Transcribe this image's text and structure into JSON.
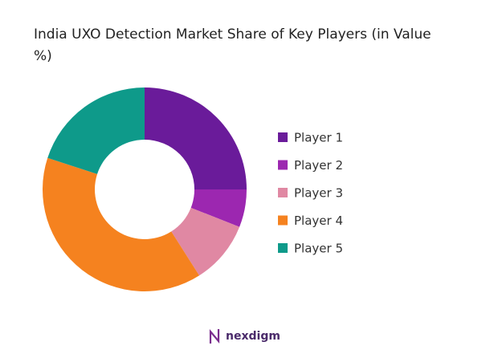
{
  "chart_data": {
    "type": "donut",
    "title": "India UXO Detection Market Share of Key Players (in Value %)",
    "categories": [
      "Player 1",
      "Player 2",
      "Player 3",
      "Player 4",
      "Player 5"
    ],
    "values": [
      25,
      6,
      10,
      39,
      20
    ],
    "colors": [
      "#6a1b9a",
      "#9c27b0",
      "#e088a3",
      "#f5821f",
      "#0e9a8a"
    ],
    "legend": "right"
  },
  "branding": {
    "logo_text": "nexdigm"
  }
}
